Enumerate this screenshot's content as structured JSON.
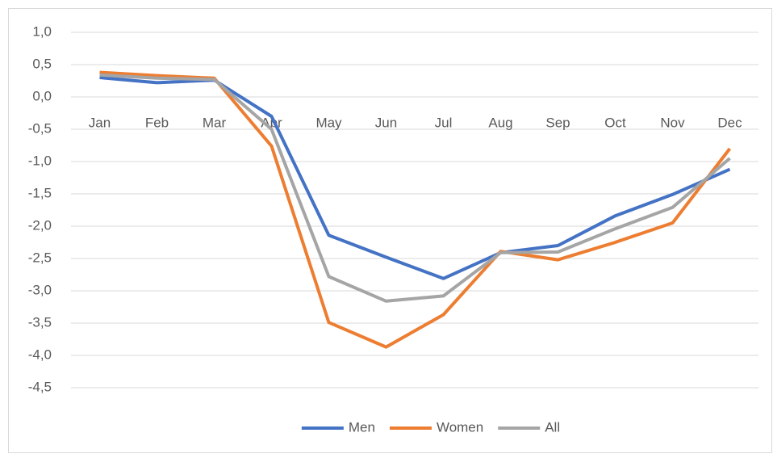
{
  "chart_data": {
    "type": "line",
    "categories": [
      "Jan",
      "Feb",
      "Mar",
      "Apr",
      "May",
      "Jun",
      "Jul",
      "Aug",
      "Sep",
      "Oct",
      "Nov",
      "Dec"
    ],
    "series": [
      {
        "name": "Men",
        "color": "#4472c4",
        "values": [
          0.3,
          0.22,
          0.26,
          -0.3,
          -2.14,
          -2.48,
          -2.81,
          -2.41,
          -2.3,
          -1.84,
          -1.51,
          -1.12
        ]
      },
      {
        "name": "Women",
        "color": "#ed7d31",
        "values": [
          0.38,
          0.33,
          0.29,
          -0.76,
          -3.49,
          -3.87,
          -3.37,
          -2.39,
          -2.52,
          -2.25,
          -1.95,
          -0.8
        ]
      },
      {
        "name": "All",
        "color": "#a5a5a5",
        "values": [
          0.34,
          0.29,
          0.27,
          -0.5,
          -2.78,
          -3.16,
          -3.08,
          -2.41,
          -2.4,
          -2.04,
          -1.71,
          -0.95
        ]
      }
    ],
    "ylim": [
      -4.5,
      1.0
    ],
    "yticks": [
      {
        "value": 1.0,
        "label": "1,0"
      },
      {
        "value": 0.5,
        "label": "0,5"
      },
      {
        "value": 0.0,
        "label": "0,0"
      },
      {
        "value": -0.5,
        "label": "-0,5"
      },
      {
        "value": -1.0,
        "label": "-1,0"
      },
      {
        "value": -1.5,
        "label": "-1,5"
      },
      {
        "value": -2.0,
        "label": "-2,0"
      },
      {
        "value": -2.5,
        "label": "-2,5"
      },
      {
        "value": -3.0,
        "label": "-3,0"
      },
      {
        "value": -3.5,
        "label": "-3,5"
      },
      {
        "value": -4.0,
        "label": "-4,0"
      },
      {
        "value": -4.5,
        "label": "-4,5"
      }
    ],
    "grid": true,
    "legend": "bottom"
  }
}
